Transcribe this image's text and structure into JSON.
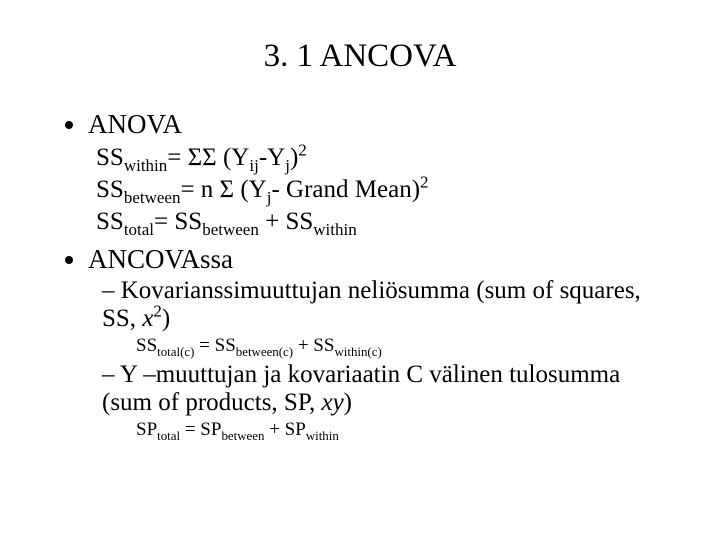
{
  "title": "3. 1 ANCOVA",
  "b1": {
    "heading": "ANOVA",
    "line1": {
      "pre": "SS",
      "sub1": "within",
      "mid": "= ΣΣ (Y",
      "sub2": "ij",
      "mid2": "-Y",
      "sub3": "j",
      "tail": ")",
      "sup": "2"
    },
    "line2": {
      "pre": "SS",
      "sub1": "between",
      "mid": "= n Σ (Y",
      "sub2": "j",
      "tail": "- Grand Mean)",
      "sup": "2"
    },
    "line3": {
      "p1": "SS",
      "s1": "total",
      "eq": "= SS",
      "s2": "between",
      "plus": " + SS",
      "s3": "within"
    }
  },
  "b2": {
    "heading": "ANCOVAssa",
    "sub1": {
      "textA": "Kovarianssimuuttujan neliösumma (sum of squares, SS, ",
      "xi": "x",
      "sup": "2",
      "textB": ")",
      "eq": {
        "p1": "SS",
        "s1": "total(c)",
        "eq": " = SS",
        "s2": "between(c)",
        "plus": " + SS",
        "s3": "within(c)"
      }
    },
    "sub2": {
      "textA": "Y –muuttujan ja kovariaatin C välinen tulosumma (sum of products, SP, ",
      "xy": "xy",
      "textB": ")",
      "eq": {
        "p1": "SP",
        "s1": "total",
        "eq": " = SP",
        "s2": "between",
        "plus": " + SP",
        "s3": "within"
      }
    }
  }
}
